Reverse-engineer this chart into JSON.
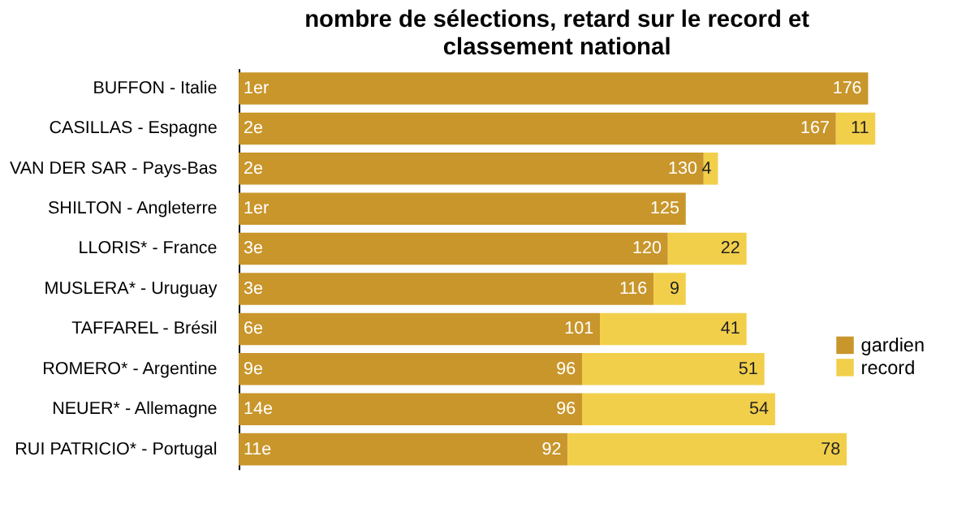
{
  "chart_data": {
    "type": "bar",
    "orientation": "horizontal",
    "stacked": true,
    "title": "nombre de sélections, retard sur le record et classement national",
    "categories": [
      "BUFFON - Italie",
      "CASILLAS - Espagne",
      "VAN DER SAR - Pays-Bas",
      "SHILTON - Angleterre",
      "LLORIS* - France",
      "MUSLERA* - Uruguay",
      "TAFFAREL - Brésil",
      "ROMERO* - Argentine",
      "NEUER* - Allemagne",
      "RUI PATRICIO* - Portugal"
    ],
    "series": [
      {
        "name": "gardien",
        "color": "#c9962b",
        "values": [
          176,
          167,
          130,
          125,
          120,
          116,
          101,
          96,
          96,
          92
        ]
      },
      {
        "name": "record",
        "color": "#f2cf4a",
        "values": [
          null,
          11,
          4,
          null,
          22,
          9,
          41,
          51,
          54,
          78
        ]
      }
    ],
    "data_labels": true,
    "legend": "bottom right",
    "annotations": [
      {
        "text": "1er",
        "y": "BUFFON - Italie"
      },
      {
        "text": "2e",
        "y": "CASILLAS - Espagne"
      },
      {
        "text": "2e",
        "y": "VAN DER SAR - Pays-Bas"
      },
      {
        "text": "1er",
        "y": "SHILTON - Angleterre"
      },
      {
        "text": "3e",
        "y": "LLORIS* - France"
      },
      {
        "text": "3e",
        "y": "MUSLERA* - Uruguay"
      },
      {
        "text": "6e",
        "y": "TAFFAREL - Brésil"
      },
      {
        "text": "9e",
        "y": "ROMERO* - Argentine"
      },
      {
        "text": "14e",
        "y": "NEUER* - Allemagne"
      },
      {
        "text": "11e",
        "y": "RUI PATRICIO* - Portugal"
      }
    ]
  }
}
